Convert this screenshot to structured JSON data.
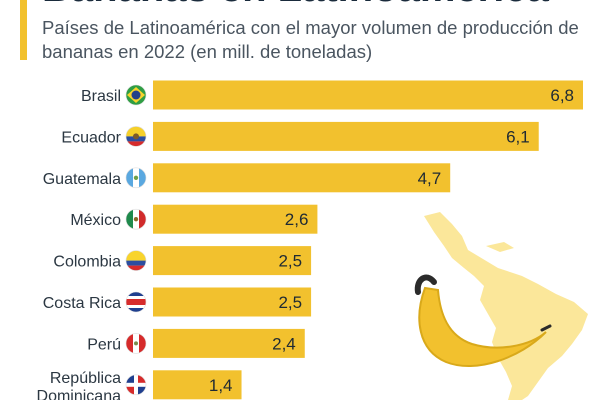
{
  "header": {
    "title": "Bananas en Latinoamérica",
    "subtitle": "Países de Latinoamérica con el mayor volumen de producción de bananas en 2022 (en mill. de toneladas)"
  },
  "chart_data": {
    "type": "bar",
    "orientation": "horizontal",
    "title": "Bananas en Latinoamérica",
    "subtitle": "Países de Latinoamérica con el mayor volumen de producción de bananas en 2022 (en mill. de toneladas)",
    "categories": [
      "Brasil",
      "Ecuador",
      "Guatemala",
      "México",
      "Colombia",
      "Costa Rica",
      "Perú",
      "República Dominicana"
    ],
    "category_lines": [
      [
        "Brasil"
      ],
      [
        "Ecuador"
      ],
      [
        "Guatemala"
      ],
      [
        "México"
      ],
      [
        "Colombia"
      ],
      [
        "Costa Rica"
      ],
      [
        "Perú"
      ],
      [
        "República",
        "Dominicana"
      ]
    ],
    "values": [
      6.8,
      6.1,
      4.7,
      2.6,
      2.5,
      2.5,
      2.4,
      1.4
    ],
    "value_labels": [
      "6,8",
      "6,1",
      "4,7",
      "2,6",
      "2,5",
      "2,5",
      "2,4",
      "1,4"
    ],
    "flags": [
      "brazil-flag-icon",
      "ecuador-flag-icon",
      "guatemala-flag-icon",
      "mexico-flag-icon",
      "colombia-flag-icon",
      "costa-rica-flag-icon",
      "peru-flag-icon",
      "dominican-republic-flag-icon"
    ],
    "xlim": [
      0,
      6.8
    ],
    "grid": false,
    "legend": "none",
    "colors": {
      "bar": "#f2c12e",
      "map": "#fbe79a",
      "banana": "#f2c12e",
      "banana_shade": "#d9a91a",
      "text": "#2b3742"
    }
  }
}
